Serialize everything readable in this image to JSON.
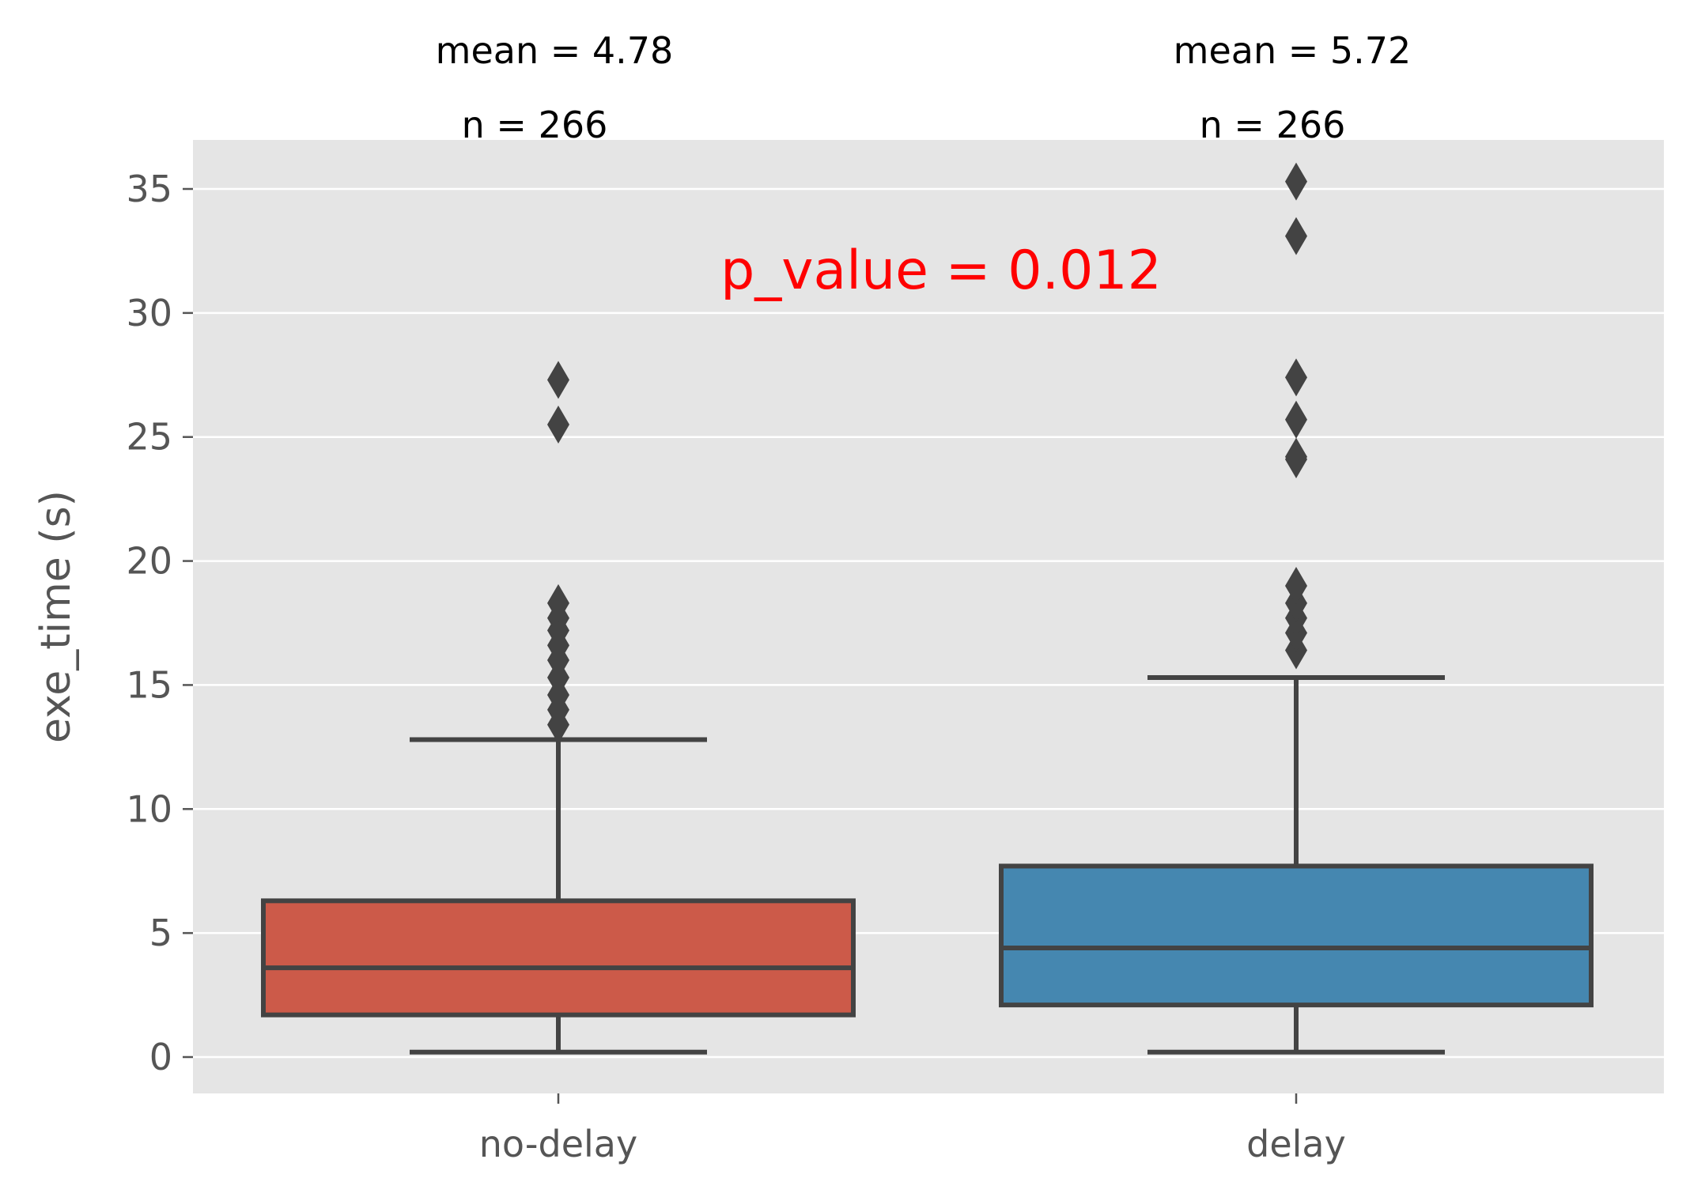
{
  "chart_data": {
    "type": "box",
    "ylabel": "exe_time (s)",
    "yticks": [
      0,
      5,
      10,
      15,
      20,
      25,
      30,
      35
    ],
    "ylim": [
      -1.5,
      37
    ],
    "grid": true,
    "categories": [
      "no-delay",
      "delay"
    ],
    "boxes": [
      {
        "category": "no-delay",
        "color": "#cc5a49",
        "whisker_low": 0.2,
        "q1": 1.7,
        "median": 3.6,
        "q3": 6.3,
        "whisker_high": 12.8,
        "outliers": [
          13.4,
          14.0,
          14.6,
          15.3,
          16.0,
          16.6,
          17.2,
          17.7,
          18.3,
          25.5,
          27.3
        ]
      },
      {
        "category": "delay",
        "color": "#4587b0",
        "whisker_low": 0.2,
        "q1": 2.1,
        "median": 4.4,
        "q3": 7.7,
        "whisker_high": 15.3,
        "outliers": [
          16.4,
          17.1,
          17.7,
          18.3,
          19.0,
          24.1,
          24.2,
          25.7,
          27.4,
          33.1,
          35.3
        ]
      }
    ],
    "annotations": [
      {
        "category": "no-delay",
        "mean_text": "mean = 4.78",
        "n_text": "n = 266"
      },
      {
        "category": "delay",
        "mean_text": "mean = 5.72",
        "n_text": "n = 266"
      }
    ],
    "p_value_text": "p_value = 0.012",
    "colors": {
      "panel_bg": "#e5e5e5",
      "grid": "#ffffff",
      "line": "#434343",
      "p_value": "#ff0000"
    }
  }
}
